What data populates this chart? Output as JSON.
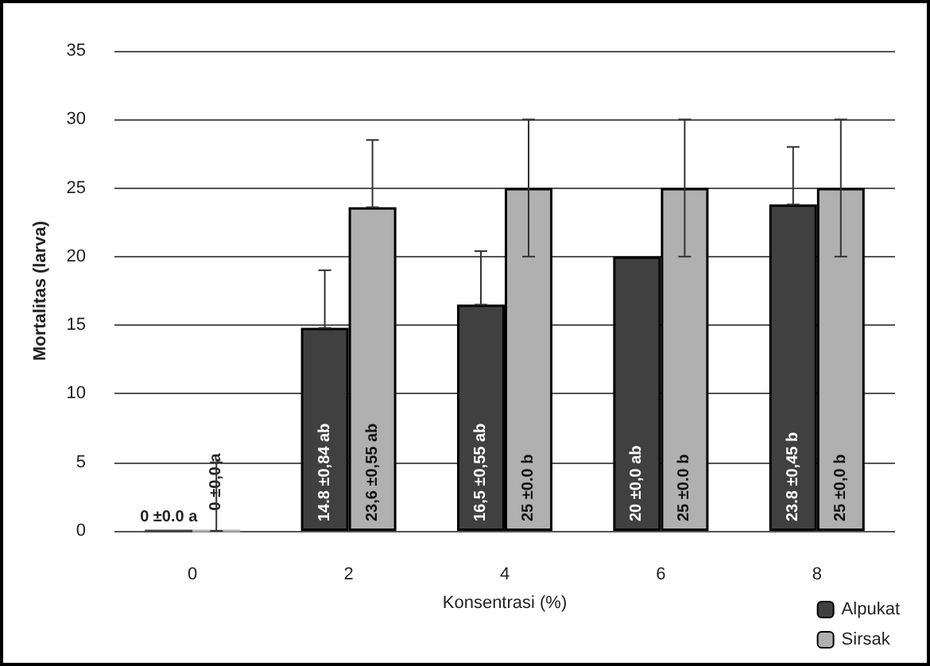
{
  "chart_data": {
    "type": "bar",
    "xlabel": "Konsentrasi (%)",
    "ylabel": "Mortalitas (larva)",
    "categories": [
      "0",
      "2",
      "4",
      "6",
      "8"
    ],
    "series": [
      {
        "name": "Alpukat",
        "color": "#404040",
        "values": [
          0,
          14.8,
          16.5,
          20,
          23.8
        ],
        "errors": [
          null,
          [
            14.8,
            19
          ],
          [
            16.5,
            20.4
          ],
          null,
          [
            23.8,
            28
          ]
        ],
        "value_labels": [
          "0 ±0.0 a",
          "14.8 ±0,84 ab",
          "16,5 ±0,55 ab",
          "20 ±0,0 ab",
          "23.8 ±0,45 b"
        ]
      },
      {
        "name": "Sirsak",
        "color": "#b0b0b0",
        "values": [
          0,
          23.6,
          25,
          25,
          25
        ],
        "errors": [
          [
            0,
            5
          ],
          [
            23.6,
            28.5
          ],
          [
            20,
            30
          ],
          [
            20,
            30
          ],
          [
            20,
            30
          ]
        ],
        "value_labels": [
          "0 ±0,0 a",
          "23,6 ±0,55 ab",
          "25 ±0.0 b",
          "25 ±0.0 b",
          "25 ±0,0 b"
        ]
      }
    ],
    "ylim": [
      0,
      35
    ],
    "yticks": [
      0,
      5,
      10,
      15,
      20,
      25,
      30,
      35
    ],
    "grid": "y",
    "legend": "bottom right"
  }
}
